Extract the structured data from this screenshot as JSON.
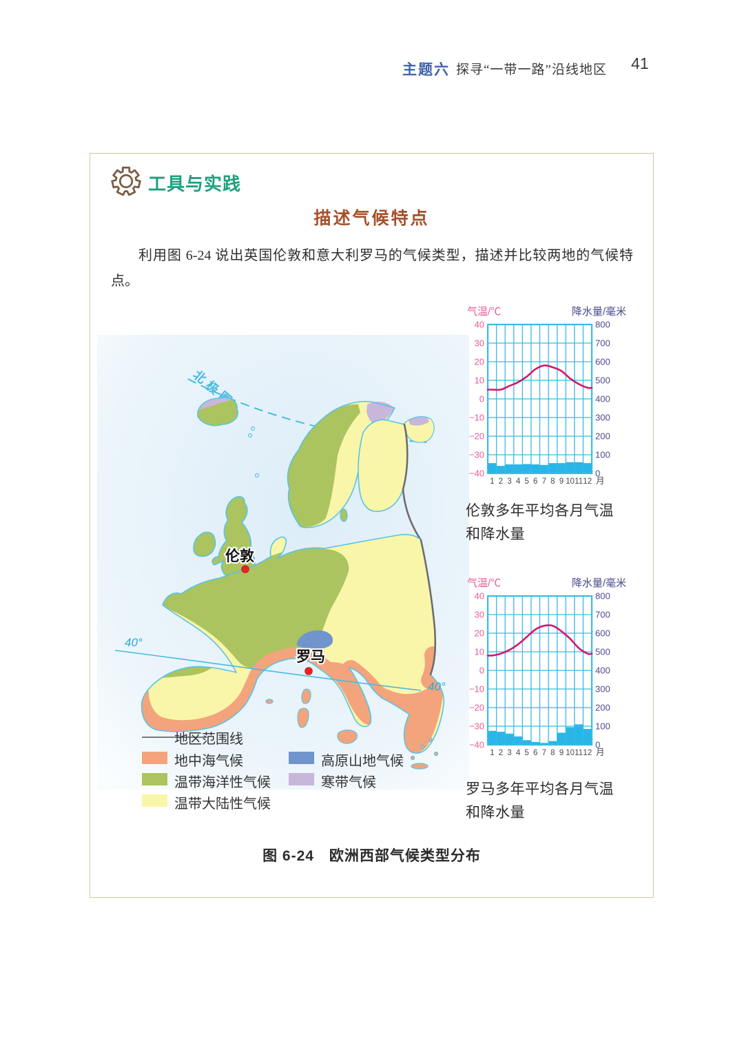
{
  "page": {
    "header": {
      "topic_label": "主题六",
      "topic_title": "探寻“一带一路”沿线地区",
      "page_number": "41"
    },
    "section": {
      "tool_label": "工具与实践",
      "activity_title": "描述气候特点",
      "paragraph": "利用图 6-24 说出英国伦敦和意大利罗马的气候类型，描述并比较两地的气候特点。"
    },
    "figure_caption": "图 6-24　欧洲西部气候类型分布"
  },
  "map": {
    "labels": {
      "arctic_circle": "北极圈",
      "london": "伦敦",
      "rome": "罗马",
      "lat40_left": "40°",
      "lat40_right": "40°"
    },
    "legend": {
      "boundary_label": "地区范围线",
      "items": [
        {
          "label": "地中海气候",
          "color": "#f3a47c"
        },
        {
          "label": "温带海洋性气候",
          "color": "#abc45f"
        },
        {
          "label": "温带大陆性气候",
          "color": "#f9f6a9"
        },
        {
          "label": "高原山地气候",
          "color": "#7095cc"
        },
        {
          "label": "寒带气候",
          "color": "#c9b6db"
        }
      ]
    }
  },
  "chart_data": [
    {
      "id": "london",
      "type": "combo",
      "title": "伦敦多年平均各月气温和降水量",
      "categories": [
        "1",
        "2",
        "3",
        "4",
        "5",
        "6",
        "7",
        "8",
        "9",
        "10",
        "11",
        "12"
      ],
      "x_unit": "月",
      "grid": {
        "color": "#35bce4",
        "rows": 8,
        "cols": 12
      },
      "axes": {
        "left": {
          "label": "气温/℃",
          "min": -40,
          "max": 40,
          "ticks": [
            40,
            30,
            20,
            10,
            0,
            -10,
            -20,
            -30,
            -40
          ],
          "color": "#ea5b95"
        },
        "right": {
          "label": "降水量/毫米",
          "min": 0,
          "max": 800,
          "ticks": [
            800,
            700,
            600,
            500,
            400,
            300,
            200,
            100,
            0
          ],
          "color": "#4b4a8e"
        }
      },
      "series": [
        {
          "name": "气温",
          "type": "line",
          "axis": "left",
          "color": "#d5156e",
          "values": [
            5,
            5,
            7,
            9,
            12,
            16,
            18,
            17,
            15,
            11,
            8,
            6
          ]
        },
        {
          "name": "降水量",
          "type": "bar",
          "axis": "right",
          "color": "#2ab5e8",
          "values": [
            55,
            40,
            48,
            48,
            50,
            48,
            45,
            55,
            55,
            60,
            60,
            55
          ]
        }
      ]
    },
    {
      "id": "rome",
      "type": "combo",
      "title": "罗马多年平均各月气温和降水量",
      "categories": [
        "1",
        "2",
        "3",
        "4",
        "5",
        "6",
        "7",
        "8",
        "9",
        "10",
        "11",
        "12"
      ],
      "x_unit": "月",
      "grid": {
        "color": "#35bce4",
        "rows": 8,
        "cols": 12
      },
      "axes": {
        "left": {
          "label": "气温/℃",
          "min": -40,
          "max": 40,
          "ticks": [
            40,
            30,
            20,
            10,
            0,
            -10,
            -20,
            -30,
            -40
          ],
          "color": "#ea5b95"
        },
        "right": {
          "label": "降水量/毫米",
          "min": 0,
          "max": 800,
          "ticks": [
            800,
            700,
            600,
            500,
            400,
            300,
            200,
            100,
            0
          ],
          "color": "#4b4a8e"
        }
      },
      "series": [
        {
          "name": "气温",
          "type": "line",
          "axis": "left",
          "color": "#d5156e",
          "values": [
            8,
            9,
            11,
            14,
            18,
            22,
            24,
            24,
            21,
            17,
            12,
            9
          ]
        },
        {
          "name": "降水量",
          "type": "bar",
          "axis": "right",
          "color": "#2ab5e8",
          "values": [
            75,
            70,
            60,
            45,
            25,
            15,
            10,
            20,
            65,
            95,
            110,
            85
          ]
        }
      ]
    }
  ]
}
